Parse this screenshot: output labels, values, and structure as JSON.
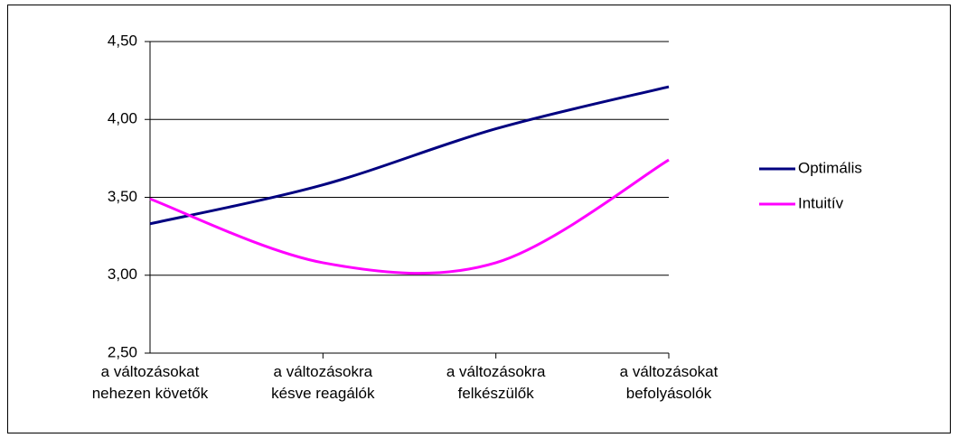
{
  "chart_data": {
    "type": "line",
    "categories": [
      "a változásokat\nnehezen követők",
      "a változásokra\nkésve reagálók",
      "a változásokra\nfelkészülők",
      "a változásokat\nbefolyásolók"
    ],
    "series": [
      {
        "name": "Optimális",
        "color": "#000080",
        "values": [
          3.33,
          3.58,
          3.94,
          4.21
        ]
      },
      {
        "name": "Intuitív",
        "color": "#ff00ff",
        "values": [
          3.49,
          3.08,
          3.08,
          3.74
        ]
      }
    ],
    "ylim": [
      2.5,
      4.5
    ],
    "yticks": [
      {
        "value": 2.5,
        "label": "2,50"
      },
      {
        "value": 3,
        "label": "3,00"
      },
      {
        "value": 3.5,
        "label": "3,50"
      },
      {
        "value": 4,
        "label": "4,00"
      },
      {
        "value": 4.5,
        "label": "4,50"
      }
    ],
    "grid": true,
    "legend": "right"
  }
}
